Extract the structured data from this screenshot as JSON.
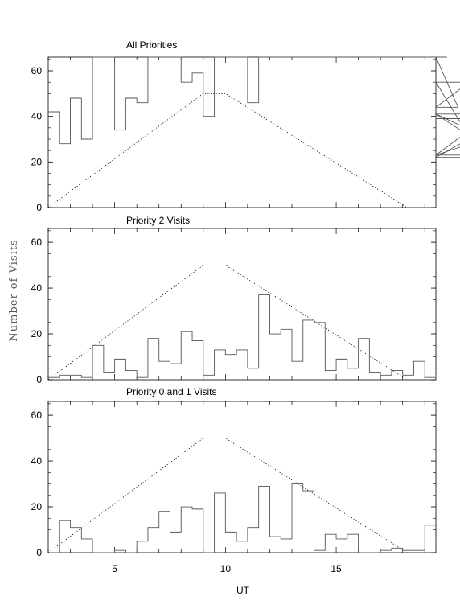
{
  "chart_data": {
    "type": "line",
    "ylabel": "Number of Visits",
    "xlabel": "UT",
    "xlim": [
      2,
      19.5
    ],
    "xticks": [
      5,
      10,
      15
    ],
    "ylim": [
      0,
      66
    ],
    "yticks": [
      0,
      20,
      40,
      60
    ],
    "bin_width": 0.5,
    "bin_start": 2,
    "reference_curve": {
      "style": "dotted",
      "x": [
        2,
        9,
        10,
        18.2
      ],
      "y": [
        0,
        50,
        50,
        0
      ]
    },
    "panels": [
      {
        "title": "All Priorities",
        "values": [
          42,
          28,
          48,
          30,
          66,
          66,
          34,
          48,
          46,
          66,
          66,
          66,
          55,
          59,
          40,
          66,
          66,
          66,
          46,
          66,
          66,
          66,
          66,
          66,
          66,
          66,
          66,
          66,
          66,
          66,
          66,
          66,
          66,
          66,
          66,
          66,
          66,
          44,
          55,
          23,
          41,
          22,
          41,
          23,
          23,
          39
        ]
      },
      {
        "title": "Priority 2 Visits",
        "values": [
          1,
          2,
          2,
          1,
          15,
          3,
          9,
          4,
          1,
          18,
          8,
          7,
          21,
          17,
          2,
          13,
          11,
          13,
          5,
          37,
          20,
          22,
          8,
          26,
          25,
          4,
          9,
          5,
          18,
          3,
          2,
          4,
          2,
          8,
          1,
          2
        ]
      },
      {
        "title": "Priority 0 and 1 Visits",
        "values": [
          0,
          14,
          11,
          6,
          0,
          0,
          1,
          0,
          5,
          11,
          18,
          9,
          20,
          19,
          0,
          26,
          9,
          5,
          11,
          29,
          7,
          6,
          30,
          27,
          1,
          8,
          6,
          8,
          0,
          0,
          1,
          2,
          1,
          1,
          12
        ]
      }
    ]
  }
}
